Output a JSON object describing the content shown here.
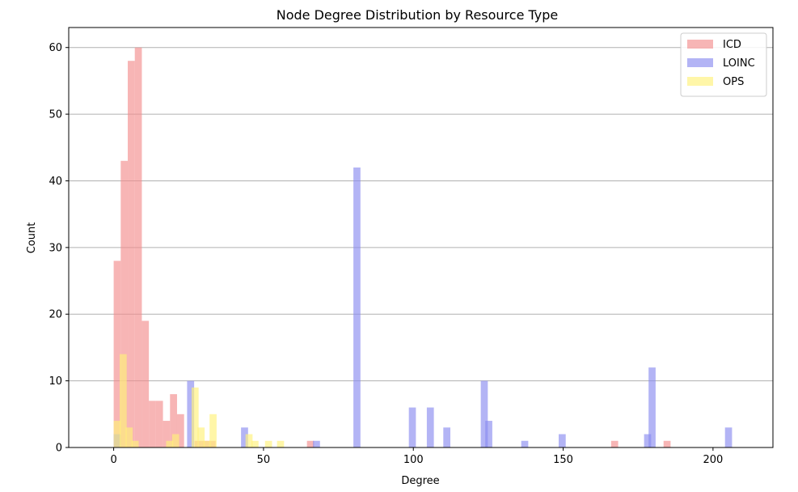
{
  "chart_data": {
    "type": "bar",
    "title": "Node Degree Distribution by Resource Type",
    "xlabel": "Degree",
    "ylabel": "Count",
    "xlim": [
      -15,
      220
    ],
    "ylim": [
      0,
      63
    ],
    "xticks": [
      0,
      50,
      100,
      150,
      200
    ],
    "yticks": [
      0,
      10,
      20,
      30,
      40,
      50,
      60
    ],
    "grid": "y",
    "legend_position": "top-right",
    "bin_width": 2.35,
    "series": [
      {
        "name": "ICD",
        "color": "#f28e8e",
        "bins": [
          {
            "x": 0,
            "count": 28
          },
          {
            "x": 2.35,
            "count": 43
          },
          {
            "x": 4.7,
            "count": 58
          },
          {
            "x": 7.05,
            "count": 60
          },
          {
            "x": 9.4,
            "count": 19
          },
          {
            "x": 11.75,
            "count": 7
          },
          {
            "x": 14.1,
            "count": 7
          },
          {
            "x": 16.45,
            "count": 4
          },
          {
            "x": 18.8,
            "count": 8
          },
          {
            "x": 21.15,
            "count": 5
          },
          {
            "x": 27.0,
            "count": 1
          },
          {
            "x": 29.35,
            "count": 1
          },
          {
            "x": 31.7,
            "count": 1
          },
          {
            "x": 64.5,
            "count": 1
          },
          {
            "x": 166.0,
            "count": 1
          },
          {
            "x": 183.5,
            "count": 1
          }
        ]
      },
      {
        "name": "LOINC",
        "color": "#8a8cf0",
        "bins": [
          {
            "x": 0,
            "count": 2
          },
          {
            "x": 24.5,
            "count": 10
          },
          {
            "x": 42.5,
            "count": 3
          },
          {
            "x": 66.5,
            "count": 1
          },
          {
            "x": 80.0,
            "count": 42
          },
          {
            "x": 98.5,
            "count": 6
          },
          {
            "x": 104.5,
            "count": 6
          },
          {
            "x": 110.0,
            "count": 3
          },
          {
            "x": 122.5,
            "count": 10
          },
          {
            "x": 124.0,
            "count": 4
          },
          {
            "x": 136.0,
            "count": 1
          },
          {
            "x": 148.5,
            "count": 2
          },
          {
            "x": 177.0,
            "count": 2
          },
          {
            "x": 178.5,
            "count": 12
          },
          {
            "x": 204.0,
            "count": 3
          }
        ]
      },
      {
        "name": "OPS",
        "color": "#fff17a",
        "bins": [
          {
            "x": 0,
            "count": 4
          },
          {
            "x": 2.0,
            "count": 14
          },
          {
            "x": 4.0,
            "count": 3
          },
          {
            "x": 6.0,
            "count": 1
          },
          {
            "x": 17.5,
            "count": 1
          },
          {
            "x": 19.5,
            "count": 2
          },
          {
            "x": 26.0,
            "count": 9
          },
          {
            "x": 28.0,
            "count": 3
          },
          {
            "x": 30.0,
            "count": 1
          },
          {
            "x": 32.0,
            "count": 5
          },
          {
            "x": 44.0,
            "count": 2
          },
          {
            "x": 46.0,
            "count": 1
          },
          {
            "x": 50.5,
            "count": 1
          },
          {
            "x": 54.5,
            "count": 1
          }
        ]
      }
    ]
  }
}
